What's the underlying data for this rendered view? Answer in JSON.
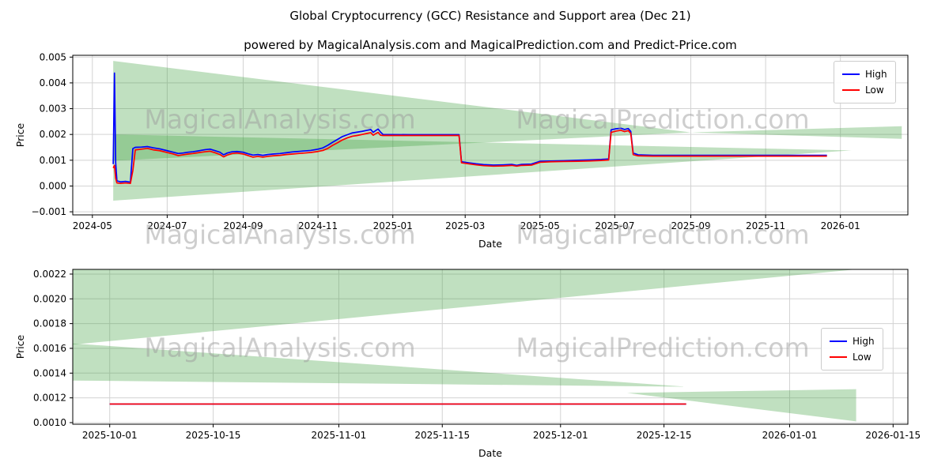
{
  "page": {
    "title": "Global Cryptocurrency (GCC) Resistance and Support area (Dec 21)",
    "subtitle": "powered by MagicalAnalysis.com and MagicalPrediction.com and Predict-Price.com"
  },
  "watermarks": {
    "analysis": "MagicalAnalysis.com",
    "prediction": "MagicalPrediction.com"
  },
  "legend": {
    "high": "High",
    "low": "Low"
  },
  "colors": {
    "high": "#0000ff",
    "low": "#ff0000",
    "band": "#3a9e3a",
    "band_opacity": 0.32,
    "grid": "#d3d3d3",
    "watermark": "#9e9e9e",
    "axis": "#000000"
  },
  "chart_data": [
    {
      "type": "line",
      "title": "Global Cryptocurrency (GCC) Resistance and Support area (Dec 21)",
      "xlabel": "Date",
      "ylabel": "Price",
      "grid": true,
      "legend_position": "upper right",
      "xlim": [
        "2024-04-15",
        "2026-02-25"
      ],
      "ylim": [
        -0.00112,
        0.00507
      ],
      "xticks": [
        {
          "v": "2024-05-01",
          "label": "2024-05"
        },
        {
          "v": "2024-07-01",
          "label": "2024-07"
        },
        {
          "v": "2024-09-01",
          "label": "2024-09"
        },
        {
          "v": "2024-11-01",
          "label": "2024-11"
        },
        {
          "v": "2025-01-01",
          "label": "2025-01"
        },
        {
          "v": "2025-03-01",
          "label": "2025-03"
        },
        {
          "v": "2025-05-01",
          "label": "2025-05"
        },
        {
          "v": "2025-07-01",
          "label": "2025-07"
        },
        {
          "v": "2025-09-01",
          "label": "2025-09"
        },
        {
          "v": "2025-11-01",
          "label": "2025-11"
        },
        {
          "v": "2026-01-01",
          "label": "2026-01"
        }
      ],
      "yticks": [
        {
          "v": -0.001,
          "label": "−0.001"
        },
        {
          "v": 0.0,
          "label": "0.000"
        },
        {
          "v": 0.001,
          "label": "0.001"
        },
        {
          "v": 0.002,
          "label": "0.002"
        },
        {
          "v": 0.003,
          "label": "0.003"
        },
        {
          "v": 0.004,
          "label": "0.004"
        },
        {
          "v": 0.005,
          "label": "0.005"
        }
      ],
      "x": [
        "2024-05-18",
        "2024-05-19",
        "2024-05-20",
        "2024-05-21",
        "2024-05-24",
        "2024-05-28",
        "2024-06-01",
        "2024-06-03",
        "2024-06-05",
        "2024-06-10",
        "2024-06-15",
        "2024-06-20",
        "2024-06-25",
        "2024-07-01",
        "2024-07-06",
        "2024-07-10",
        "2024-07-14",
        "2024-07-18",
        "2024-07-22",
        "2024-07-26",
        "2024-08-01",
        "2024-08-05",
        "2024-08-09",
        "2024-08-13",
        "2024-08-16",
        "2024-08-19",
        "2024-08-23",
        "2024-08-27",
        "2024-09-01",
        "2024-09-05",
        "2024-09-09",
        "2024-09-13",
        "2024-09-17",
        "2024-09-21",
        "2024-09-25",
        "2024-10-01",
        "2024-10-06",
        "2024-10-11",
        "2024-10-16",
        "2024-10-21",
        "2024-10-26",
        "2024-11-01",
        "2024-11-05",
        "2024-11-09",
        "2024-11-13",
        "2024-11-17",
        "2024-11-21",
        "2024-11-25",
        "2024-11-29",
        "2024-12-03",
        "2024-12-07",
        "2024-12-11",
        "2024-12-14",
        "2024-12-16",
        "2024-12-18",
        "2024-12-20",
        "2024-12-22",
        "2024-12-24",
        "2025-01-15",
        "2025-02-24",
        "2025-02-26",
        "2025-03-04",
        "2025-03-10",
        "2025-03-16",
        "2025-03-24",
        "2025-04-01",
        "2025-04-08",
        "2025-04-12",
        "2025-04-16",
        "2025-04-24",
        "2025-05-01",
        "2025-05-10",
        "2025-05-20",
        "2025-06-01",
        "2025-06-10",
        "2025-06-20",
        "2025-06-26",
        "2025-06-28",
        "2025-07-02",
        "2025-07-06",
        "2025-07-09",
        "2025-07-12",
        "2025-07-14",
        "2025-07-16",
        "2025-07-20",
        "2025-08-01",
        "2025-12-21"
      ],
      "series": [
        {
          "name": "High",
          "color_key": "high",
          "y": [
            0.00085,
            0.00438,
            0.0009,
            0.0002,
            0.00016,
            0.00018,
            0.00015,
            0.00145,
            0.0015,
            0.00151,
            0.00153,
            0.00148,
            0.00144,
            0.00137,
            0.00131,
            0.00126,
            0.00128,
            0.00131,
            0.00133,
            0.00136,
            0.00141,
            0.00143,
            0.00137,
            0.00131,
            0.00121,
            0.00128,
            0.00133,
            0.00134,
            0.00131,
            0.00125,
            0.0012,
            0.00122,
            0.00119,
            0.00122,
            0.00124,
            0.00126,
            0.00129,
            0.00132,
            0.00134,
            0.00136,
            0.00138,
            0.00143,
            0.00148,
            0.00158,
            0.0017,
            0.00181,
            0.00192,
            0.00199,
            0.00206,
            0.00209,
            0.00212,
            0.00216,
            0.00219,
            0.00208,
            0.00215,
            0.00221,
            0.00209,
            0.002,
            0.00199,
            0.00199,
            0.00094,
            0.0009,
            0.00086,
            0.00083,
            0.00081,
            0.00082,
            0.00084,
            0.0008,
            0.00084,
            0.00085,
            0.00096,
            0.00097,
            0.00098,
            0.001,
            0.00101,
            0.00103,
            0.00105,
            0.00218,
            0.00222,
            0.00224,
            0.00219,
            0.00223,
            0.00212,
            0.00128,
            0.00121,
            0.00119,
            0.00119
          ]
        },
        {
          "name": "Low",
          "color_key": "low",
          "y": [
            0.0007,
            0.0008,
            0.0003,
            0.00012,
            0.0001,
            0.00012,
            0.0001,
            0.0006,
            0.0014,
            0.00143,
            0.00146,
            0.0014,
            0.00137,
            0.0013,
            0.00124,
            0.00118,
            0.00121,
            0.00124,
            0.00126,
            0.00129,
            0.00133,
            0.00135,
            0.00129,
            0.00122,
            0.00113,
            0.0012,
            0.00126,
            0.00128,
            0.00124,
            0.00118,
            0.00112,
            0.00115,
            0.00112,
            0.00115,
            0.00117,
            0.00119,
            0.00122,
            0.00124,
            0.00126,
            0.00128,
            0.0013,
            0.00134,
            0.00138,
            0.00146,
            0.00158,
            0.00168,
            0.00179,
            0.00187,
            0.00193,
            0.00196,
            0.002,
            0.00204,
            0.00207,
            0.00197,
            0.00203,
            0.00208,
            0.00197,
            0.00196,
            0.00196,
            0.00196,
            0.0009,
            0.00086,
            0.00082,
            0.00079,
            0.00077,
            0.00078,
            0.0008,
            0.00077,
            0.0008,
            0.00081,
            0.00092,
            0.00094,
            0.00095,
            0.00096,
            0.00097,
            0.00099,
            0.00101,
            0.00208,
            0.00213,
            0.00216,
            0.00211,
            0.00215,
            0.00204,
            0.00122,
            0.00117,
            0.00116,
            0.00116
          ]
        }
      ],
      "bands": [
        [
          [
            "2024-05-18",
            0.00485
          ],
          [
            "2024-05-18",
            0.00098
          ],
          [
            "2025-09-01",
            0.00208
          ]
        ],
        [
          [
            "2025-09-01",
            0.00208
          ],
          [
            "2026-02-20",
            0.00232
          ],
          [
            "2026-02-20",
            0.00183
          ]
        ],
        [
          [
            "2024-05-18",
            0.002
          ],
          [
            "2024-05-18",
            -0.00057
          ],
          [
            "2026-01-10",
            0.00138
          ]
        ]
      ]
    },
    {
      "type": "line",
      "title": "",
      "xlabel": "Date",
      "ylabel": "Price",
      "grid": true,
      "legend_position": "right",
      "xlim": [
        "2025-09-26",
        "2026-01-17"
      ],
      "ylim": [
        0.000987,
        0.002238
      ],
      "xticks": [
        {
          "v": "2025-10-01",
          "label": "2025-10-01"
        },
        {
          "v": "2025-10-15",
          "label": "2025-10-15"
        },
        {
          "v": "2025-11-01",
          "label": "2025-11-01"
        },
        {
          "v": "2025-11-15",
          "label": "2025-11-15"
        },
        {
          "v": "2025-12-01",
          "label": "2025-12-01"
        },
        {
          "v": "2025-12-15",
          "label": "2025-12-15"
        },
        {
          "v": "2026-01-01",
          "label": "2026-01-01"
        },
        {
          "v": "2026-01-15",
          "label": "2026-01-15"
        }
      ],
      "yticks": [
        {
          "v": 0.001,
          "label": "0.0010"
        },
        {
          "v": 0.0012,
          "label": "0.0012"
        },
        {
          "v": 0.0014,
          "label": "0.0014"
        },
        {
          "v": 0.0016,
          "label": "0.0016"
        },
        {
          "v": 0.0018,
          "label": "0.0018"
        },
        {
          "v": 0.002,
          "label": "0.0020"
        },
        {
          "v": 0.0022,
          "label": "0.0022"
        }
      ],
      "x": [
        "2025-10-01",
        "2025-12-18"
      ],
      "series": [
        {
          "name": "High",
          "color_key": "high",
          "y": [
            0.00115,
            0.00115
          ]
        },
        {
          "name": "Low",
          "color_key": "low",
          "y": [
            0.00115,
            0.00115
          ]
        }
      ],
      "bands": [
        [
          [
            "2025-09-26",
            0.002238
          ],
          [
            "2025-09-26",
            0.00163
          ],
          [
            "2026-01-10",
            0.002238
          ]
        ],
        [
          [
            "2025-09-26",
            0.00164
          ],
          [
            "2025-09-26",
            0.00134
          ],
          [
            "2025-12-18",
            0.00129
          ]
        ],
        [
          [
            "2025-12-10",
            0.00124
          ],
          [
            "2026-01-10",
            0.00127
          ],
          [
            "2026-01-10",
            0.00101
          ]
        ]
      ]
    }
  ]
}
